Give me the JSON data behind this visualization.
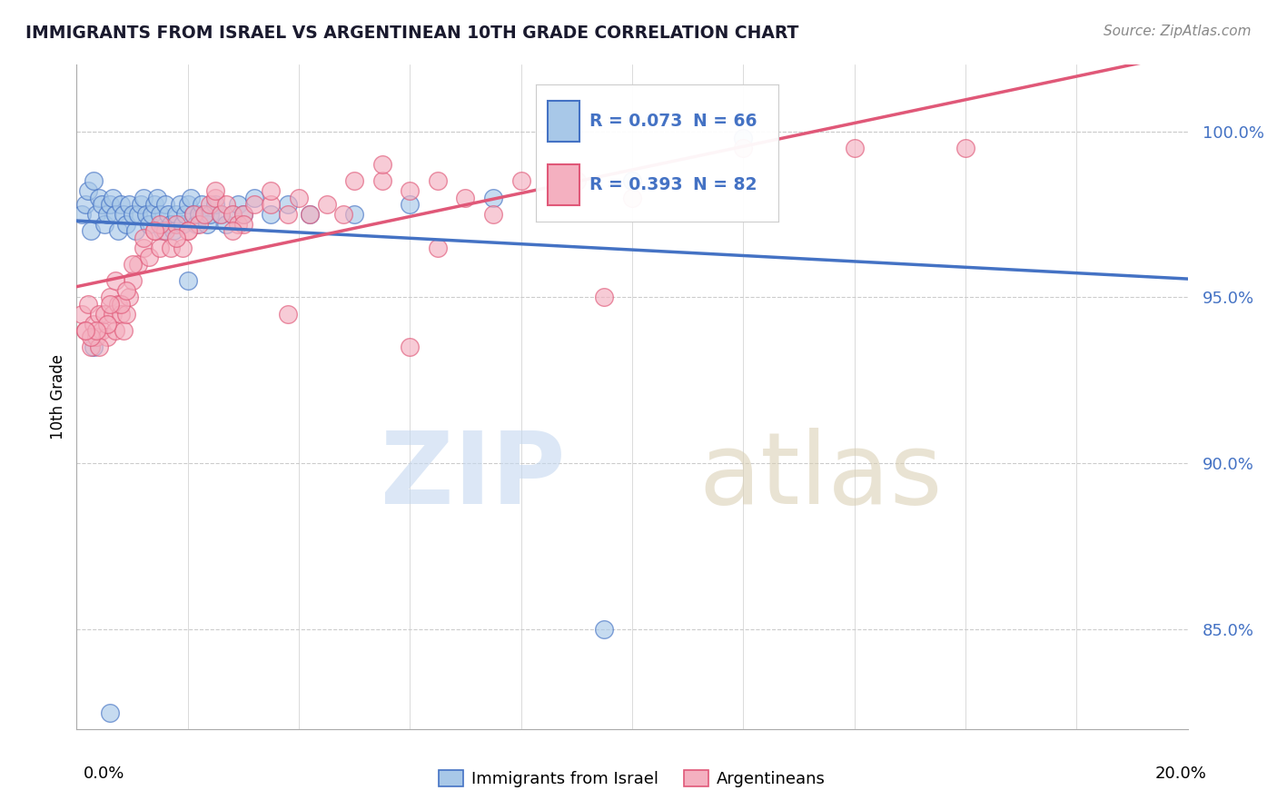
{
  "title": "IMMIGRANTS FROM ISRAEL VS ARGENTINEAN 10TH GRADE CORRELATION CHART",
  "source": "Source: ZipAtlas.com",
  "ylabel": "10th Grade",
  "xlim": [
    0.0,
    20.0
  ],
  "ylim": [
    82.0,
    102.0
  ],
  "yticks": [
    85.0,
    90.0,
    95.0,
    100.0
  ],
  "ytick_labels": [
    "85.0%",
    "90.0%",
    "95.0%",
    "100.0%"
  ],
  "blue_R": 0.073,
  "blue_N": 66,
  "pink_R": 0.393,
  "pink_N": 82,
  "blue_color": "#a8c8e8",
  "pink_color": "#f4b0c0",
  "blue_line_color": "#4472c4",
  "pink_line_color": "#e05878",
  "legend_label_blue": "Immigrants from Israel",
  "legend_label_pink": "Argentineans",
  "blue_scatter_x": [
    0.1,
    0.15,
    0.2,
    0.25,
    0.3,
    0.35,
    0.4,
    0.45,
    0.5,
    0.55,
    0.6,
    0.65,
    0.7,
    0.75,
    0.8,
    0.85,
    0.9,
    0.95,
    1.0,
    1.05,
    1.1,
    1.15,
    1.2,
    1.25,
    1.3,
    1.35,
    1.4,
    1.45,
    1.5,
    1.55,
    1.6,
    1.65,
    1.7,
    1.75,
    1.8,
    1.85,
    1.9,
    1.95,
    2.0,
    2.05,
    2.1,
    2.15,
    2.2,
    2.25,
    2.3,
    2.35,
    2.4,
    2.5,
    2.6,
    2.7,
    2.8,
    2.9,
    3.0,
    3.2,
    3.5,
    3.8,
    4.2,
    5.0,
    6.0,
    7.5,
    10.0,
    12.0,
    2.0,
    9.5,
    0.3,
    0.6
  ],
  "blue_scatter_y": [
    97.5,
    97.8,
    98.2,
    97.0,
    98.5,
    97.5,
    98.0,
    97.8,
    97.2,
    97.5,
    97.8,
    98.0,
    97.5,
    97.0,
    97.8,
    97.5,
    97.2,
    97.8,
    97.5,
    97.0,
    97.5,
    97.8,
    98.0,
    97.5,
    97.2,
    97.5,
    97.8,
    98.0,
    97.5,
    97.0,
    97.8,
    97.5,
    97.2,
    97.0,
    97.5,
    97.8,
    97.2,
    97.5,
    97.8,
    98.0,
    97.5,
    97.2,
    97.5,
    97.8,
    97.5,
    97.2,
    97.5,
    97.8,
    97.5,
    97.2,
    97.5,
    97.8,
    97.5,
    98.0,
    97.5,
    97.8,
    97.5,
    97.5,
    97.8,
    98.0,
    98.5,
    99.8,
    95.5,
    85.0,
    93.5,
    82.5
  ],
  "pink_scatter_x": [
    0.1,
    0.15,
    0.2,
    0.25,
    0.3,
    0.35,
    0.4,
    0.45,
    0.5,
    0.55,
    0.6,
    0.65,
    0.7,
    0.75,
    0.8,
    0.85,
    0.9,
    0.95,
    1.0,
    1.1,
    1.2,
    1.3,
    1.4,
    1.5,
    1.6,
    1.7,
    1.8,
    1.9,
    2.0,
    2.1,
    2.2,
    2.3,
    2.4,
    2.5,
    2.6,
    2.7,
    2.8,
    2.9,
    3.0,
    3.2,
    3.5,
    3.8,
    4.0,
    4.5,
    5.0,
    5.5,
    6.0,
    6.5,
    7.0,
    8.0,
    9.0,
    10.0,
    12.0,
    14.0,
    16.0,
    0.55,
    0.7,
    1.2,
    1.5,
    2.5,
    3.0,
    3.5,
    5.5,
    7.5,
    4.8,
    0.4,
    2.0,
    0.8,
    0.25,
    1.8,
    0.6,
    6.5,
    0.35,
    1.0,
    2.8,
    9.5,
    4.2,
    3.8,
    0.15,
    0.9,
    1.4,
    6.0
  ],
  "pink_scatter_y": [
    94.5,
    94.0,
    94.8,
    93.5,
    94.2,
    93.8,
    94.5,
    94.0,
    94.5,
    93.8,
    95.0,
    94.5,
    94.0,
    94.8,
    94.5,
    94.0,
    94.5,
    95.0,
    95.5,
    96.0,
    96.5,
    96.2,
    97.0,
    96.5,
    97.0,
    96.5,
    97.2,
    96.5,
    97.0,
    97.5,
    97.2,
    97.5,
    97.8,
    98.0,
    97.5,
    97.8,
    97.5,
    97.2,
    97.5,
    97.8,
    97.8,
    97.5,
    98.0,
    97.8,
    98.5,
    98.5,
    98.2,
    98.5,
    98.0,
    98.5,
    98.5,
    98.0,
    99.5,
    99.5,
    99.5,
    94.2,
    95.5,
    96.8,
    97.2,
    98.2,
    97.2,
    98.2,
    99.0,
    97.5,
    97.5,
    93.5,
    97.0,
    94.8,
    93.8,
    96.8,
    94.8,
    96.5,
    94.0,
    96.0,
    97.0,
    95.0,
    97.5,
    94.5,
    94.0,
    95.2,
    97.0,
    93.5
  ]
}
